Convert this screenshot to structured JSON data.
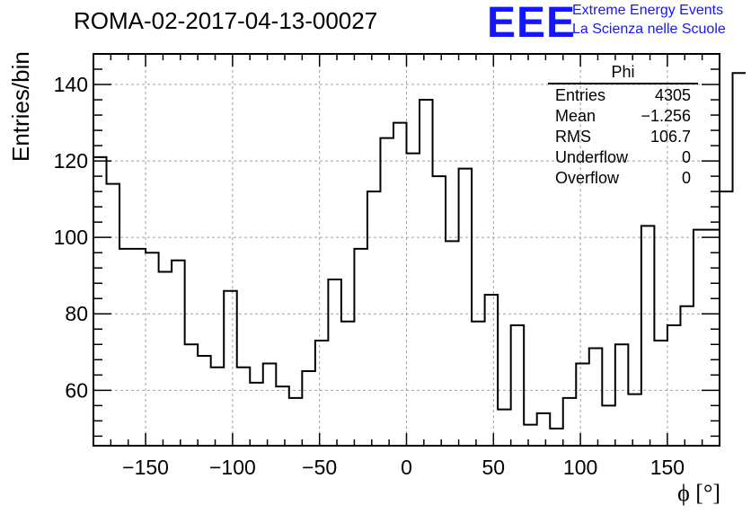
{
  "title": "ROMA-02-2017-04-13-00027",
  "logo": {
    "text": "EEE",
    "line1": "Extreme Energy Events",
    "line2": "La Scienza nelle Scuole",
    "color": "#1515ff"
  },
  "stats": {
    "name": "Phi",
    "rows": [
      {
        "label": "Entries",
        "value": "4305"
      },
      {
        "label": "Mean",
        "value": "−1.256"
      },
      {
        "label": "RMS",
        "value": "106.7"
      },
      {
        "label": "Underflow",
        "value": "0"
      },
      {
        "label": "Overflow",
        "value": "0"
      }
    ]
  },
  "chart_data": {
    "type": "bar",
    "style": "step-histogram",
    "title": "ROMA-02-2017-04-13-00027",
    "xlabel": "ϕ [°]",
    "ylabel": "Entries/bin",
    "xlim": [
      -180,
      180
    ],
    "ylim": [
      45.5,
      148
    ],
    "xticks": [
      -150,
      -100,
      -50,
      0,
      50,
      100,
      150
    ],
    "yticks": [
      60,
      80,
      100,
      120,
      140
    ],
    "grid": true,
    "bin_width": 7.5,
    "bin_edges_start": -180,
    "values": [
      121,
      114,
      97,
      97,
      96,
      91,
      94,
      72,
      69,
      66,
      86,
      66,
      62,
      67,
      61,
      58,
      65,
      73,
      89,
      78,
      97,
      112,
      126,
      130,
      122,
      136,
      116,
      99,
      118,
      78,
      85,
      55,
      77,
      51,
      54,
      50,
      58,
      67,
      71,
      56,
      72,
      59,
      103,
      73,
      77,
      82,
      102,
      102,
      112,
      143
    ],
    "line_color": "#000000"
  }
}
